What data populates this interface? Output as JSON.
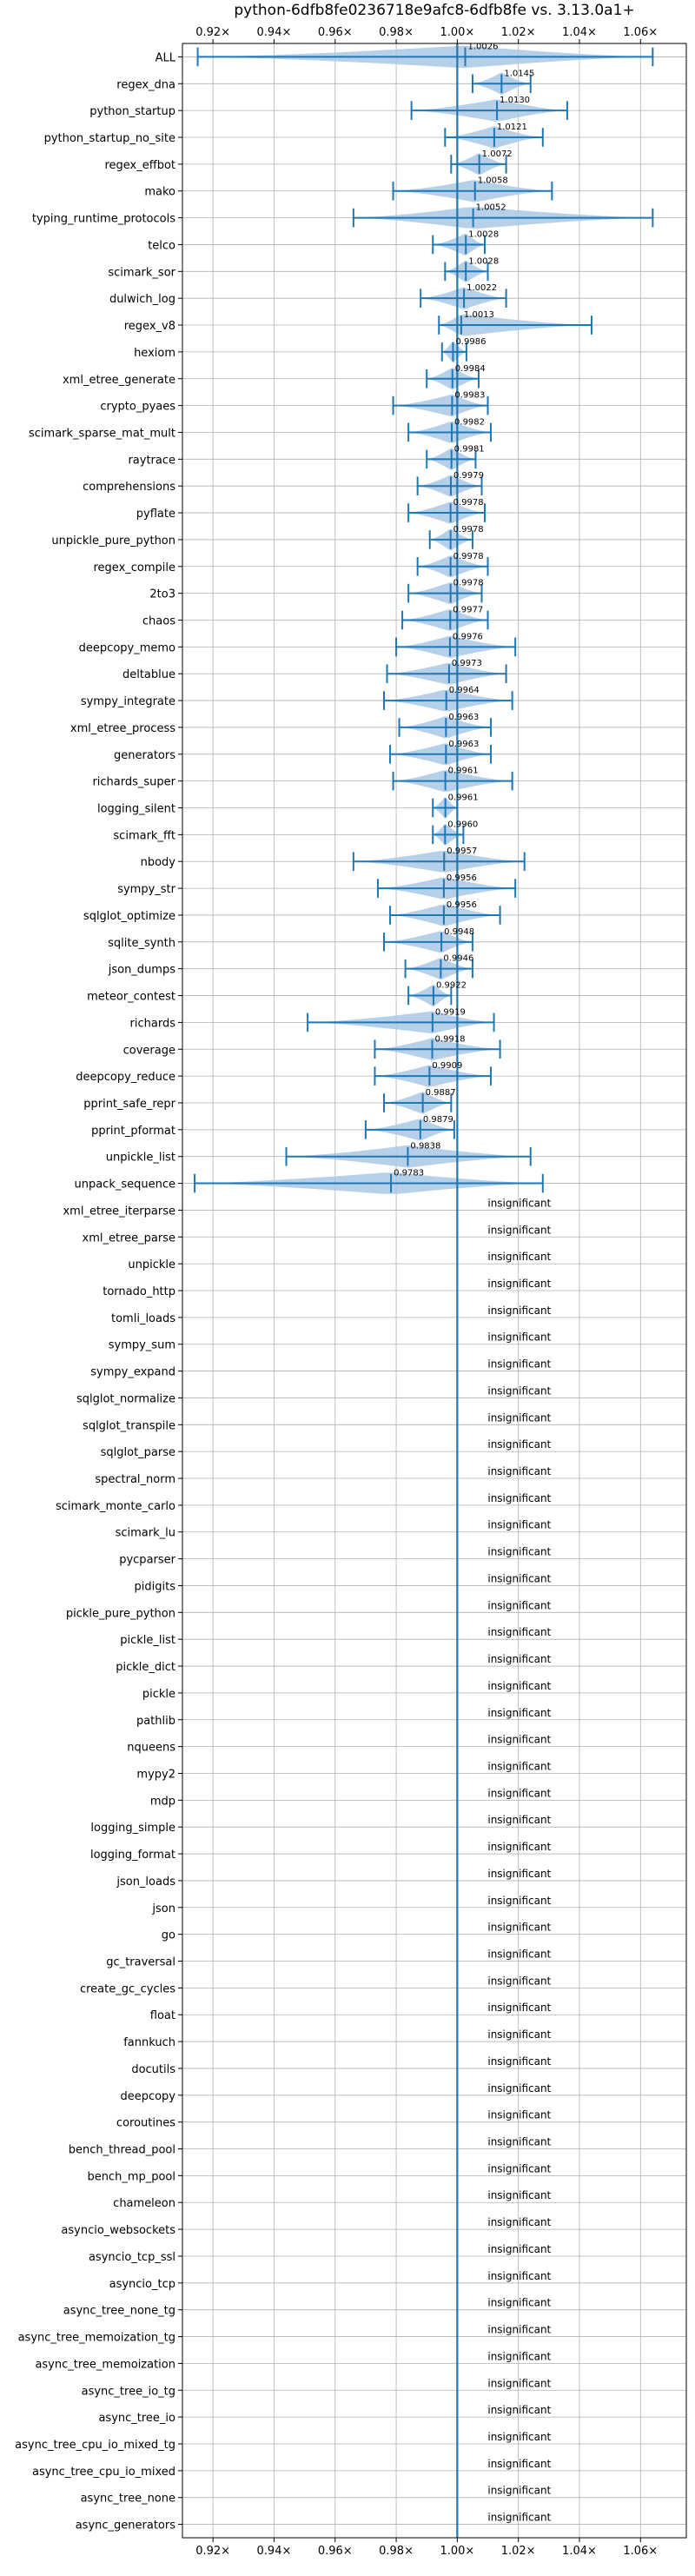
{
  "chart_data": {
    "type": "violin",
    "title": "python-6dfb8fe0236718e9afc8-6dfb8fe vs. 3.13.0a1+",
    "xlim": [
      0.91,
      1.075
    ],
    "x_ticks": [
      0.92,
      0.94,
      0.96,
      0.98,
      1.0,
      1.02,
      1.04,
      1.06
    ],
    "x_tick_labels": [
      "0.92×",
      "0.94×",
      "0.96×",
      "0.98×",
      "1.00×",
      "1.02×",
      "1.04×",
      "1.06×"
    ],
    "reference_line": 1.0,
    "grid": true,
    "insignificant_label": "insignificant",
    "benchmarks": [
      {
        "name": "ALL",
        "median": 1.0026,
        "min": 0.915,
        "max": 1.064,
        "label": "1.0026"
      },
      {
        "name": "regex_dna",
        "median": 1.0145,
        "min": 1.005,
        "max": 1.024,
        "label": "1.0145"
      },
      {
        "name": "python_startup",
        "median": 1.013,
        "min": 0.985,
        "max": 1.036,
        "label": "1.0130"
      },
      {
        "name": "python_startup_no_site",
        "median": 1.0121,
        "min": 0.996,
        "max": 1.028,
        "label": "1.0121"
      },
      {
        "name": "regex_effbot",
        "median": 1.0072,
        "min": 0.998,
        "max": 1.016,
        "label": "1.0072"
      },
      {
        "name": "mako",
        "median": 1.0058,
        "min": 0.979,
        "max": 1.031,
        "label": "1.0058"
      },
      {
        "name": "typing_runtime_protocols",
        "median": 1.0052,
        "min": 0.966,
        "max": 1.064,
        "label": "1.0052"
      },
      {
        "name": "telco",
        "median": 1.0028,
        "min": 0.992,
        "max": 1.009,
        "label": "1.0028"
      },
      {
        "name": "scimark_sor",
        "median": 1.0028,
        "min": 0.996,
        "max": 1.01,
        "label": "1.0028"
      },
      {
        "name": "dulwich_log",
        "median": 1.0022,
        "min": 0.988,
        "max": 1.016,
        "label": "1.0022"
      },
      {
        "name": "regex_v8",
        "median": 1.0013,
        "min": 0.994,
        "max": 1.044,
        "label": "1.0013"
      },
      {
        "name": "hexiom",
        "median": 0.9986,
        "min": 0.995,
        "max": 1.003,
        "label": "0.9986"
      },
      {
        "name": "xml_etree_generate",
        "median": 0.9984,
        "min": 0.99,
        "max": 1.007,
        "label": "0.9984"
      },
      {
        "name": "crypto_pyaes",
        "median": 0.9983,
        "min": 0.979,
        "max": 1.01,
        "label": "0.9983"
      },
      {
        "name": "scimark_sparse_mat_mult",
        "median": 0.9982,
        "min": 0.984,
        "max": 1.011,
        "label": "0.9982"
      },
      {
        "name": "raytrace",
        "median": 0.9981,
        "min": 0.99,
        "max": 1.006,
        "label": "0.9981"
      },
      {
        "name": "comprehensions",
        "median": 0.9979,
        "min": 0.987,
        "max": 1.008,
        "label": "0.9979"
      },
      {
        "name": "pyflate",
        "median": 0.9978,
        "min": 0.984,
        "max": 1.009,
        "label": "0.9978"
      },
      {
        "name": "unpickle_pure_python",
        "median": 0.9978,
        "min": 0.991,
        "max": 1.005,
        "label": "0.9978"
      },
      {
        "name": "regex_compile",
        "median": 0.9978,
        "min": 0.987,
        "max": 1.01,
        "label": "0.9978"
      },
      {
        "name": "2to3",
        "median": 0.9978,
        "min": 0.984,
        "max": 1.008,
        "label": "0.9978"
      },
      {
        "name": "chaos",
        "median": 0.9977,
        "min": 0.982,
        "max": 1.01,
        "label": "0.9977"
      },
      {
        "name": "deepcopy_memo",
        "median": 0.9976,
        "min": 0.98,
        "max": 1.019,
        "label": "0.9976"
      },
      {
        "name": "deltablue",
        "median": 0.9973,
        "min": 0.977,
        "max": 1.016,
        "label": "0.9973"
      },
      {
        "name": "sympy_integrate",
        "median": 0.9964,
        "min": 0.976,
        "max": 1.018,
        "label": "0.9964"
      },
      {
        "name": "xml_etree_process",
        "median": 0.9963,
        "min": 0.981,
        "max": 1.011,
        "label": "0.9963"
      },
      {
        "name": "generators",
        "median": 0.9963,
        "min": 0.978,
        "max": 1.011,
        "label": "0.9963"
      },
      {
        "name": "richards_super",
        "median": 0.9961,
        "min": 0.979,
        "max": 1.018,
        "label": "0.9961"
      },
      {
        "name": "logging_silent",
        "median": 0.9961,
        "min": 0.992,
        "max": 1.0,
        "label": "0.9961"
      },
      {
        "name": "scimark_fft",
        "median": 0.996,
        "min": 0.992,
        "max": 1.002,
        "label": "0.9960"
      },
      {
        "name": "nbody",
        "median": 0.9957,
        "min": 0.966,
        "max": 1.022,
        "label": "0.9957"
      },
      {
        "name": "sympy_str",
        "median": 0.9956,
        "min": 0.974,
        "max": 1.019,
        "label": "0.9956"
      },
      {
        "name": "sqlglot_optimize",
        "median": 0.9956,
        "min": 0.978,
        "max": 1.014,
        "label": "0.9956"
      },
      {
        "name": "sqlite_synth",
        "median": 0.9948,
        "min": 0.976,
        "max": 1.005,
        "label": "0.9948"
      },
      {
        "name": "json_dumps",
        "median": 0.9946,
        "min": 0.983,
        "max": 1.005,
        "label": "0.9946"
      },
      {
        "name": "meteor_contest",
        "median": 0.9922,
        "min": 0.984,
        "max": 0.998,
        "label": "0.9922"
      },
      {
        "name": "richards",
        "median": 0.9919,
        "min": 0.951,
        "max": 1.012,
        "label": "0.9919"
      },
      {
        "name": "coverage",
        "median": 0.9918,
        "min": 0.973,
        "max": 1.014,
        "label": "0.9918"
      },
      {
        "name": "deepcopy_reduce",
        "median": 0.9909,
        "min": 0.973,
        "max": 1.011,
        "label": "0.9909"
      },
      {
        "name": "pprint_safe_repr",
        "median": 0.9887,
        "min": 0.976,
        "max": 0.998,
        "label": "0.9887"
      },
      {
        "name": "pprint_pformat",
        "median": 0.9879,
        "min": 0.97,
        "max": 0.999,
        "label": "0.9879"
      },
      {
        "name": "unpickle_list",
        "median": 0.9838,
        "min": 0.944,
        "max": 1.024,
        "label": "0.9838"
      },
      {
        "name": "unpack_sequence",
        "median": 0.9783,
        "min": 0.914,
        "max": 1.028,
        "label": "0.9783"
      },
      {
        "name": "xml_etree_iterparse",
        "insignificant": true
      },
      {
        "name": "xml_etree_parse",
        "insignificant": true
      },
      {
        "name": "unpickle",
        "insignificant": true
      },
      {
        "name": "tornado_http",
        "insignificant": true
      },
      {
        "name": "tomli_loads",
        "insignificant": true
      },
      {
        "name": "sympy_sum",
        "insignificant": true
      },
      {
        "name": "sympy_expand",
        "insignificant": true
      },
      {
        "name": "sqlglot_normalize",
        "insignificant": true
      },
      {
        "name": "sqlglot_transpile",
        "insignificant": true
      },
      {
        "name": "sqlglot_parse",
        "insignificant": true
      },
      {
        "name": "spectral_norm",
        "insignificant": true
      },
      {
        "name": "scimark_monte_carlo",
        "insignificant": true
      },
      {
        "name": "scimark_lu",
        "insignificant": true
      },
      {
        "name": "pycparser",
        "insignificant": true
      },
      {
        "name": "pidigits",
        "insignificant": true
      },
      {
        "name": "pickle_pure_python",
        "insignificant": true
      },
      {
        "name": "pickle_list",
        "insignificant": true
      },
      {
        "name": "pickle_dict",
        "insignificant": true
      },
      {
        "name": "pickle",
        "insignificant": true
      },
      {
        "name": "pathlib",
        "insignificant": true
      },
      {
        "name": "nqueens",
        "insignificant": true
      },
      {
        "name": "mypy2",
        "insignificant": true
      },
      {
        "name": "mdp",
        "insignificant": true
      },
      {
        "name": "logging_simple",
        "insignificant": true
      },
      {
        "name": "logging_format",
        "insignificant": true
      },
      {
        "name": "json_loads",
        "insignificant": true
      },
      {
        "name": "json",
        "insignificant": true
      },
      {
        "name": "go",
        "insignificant": true
      },
      {
        "name": "gc_traversal",
        "insignificant": true
      },
      {
        "name": "create_gc_cycles",
        "insignificant": true
      },
      {
        "name": "float",
        "insignificant": true
      },
      {
        "name": "fannkuch",
        "insignificant": true
      },
      {
        "name": "docutils",
        "insignificant": true
      },
      {
        "name": "deepcopy",
        "insignificant": true
      },
      {
        "name": "coroutines",
        "insignificant": true
      },
      {
        "name": "bench_thread_pool",
        "insignificant": true
      },
      {
        "name": "bench_mp_pool",
        "insignificant": true
      },
      {
        "name": "chameleon",
        "insignificant": true
      },
      {
        "name": "asyncio_websockets",
        "insignificant": true
      },
      {
        "name": "asyncio_tcp_ssl",
        "insignificant": true
      },
      {
        "name": "asyncio_tcp",
        "insignificant": true
      },
      {
        "name": "async_tree_none_tg",
        "insignificant": true
      },
      {
        "name": "async_tree_memoization_tg",
        "insignificant": true
      },
      {
        "name": "async_tree_memoization",
        "insignificant": true
      },
      {
        "name": "async_tree_io_tg",
        "insignificant": true
      },
      {
        "name": "async_tree_io",
        "insignificant": true
      },
      {
        "name": "async_tree_cpu_io_mixed_tg",
        "insignificant": true
      },
      {
        "name": "async_tree_cpu_io_mixed",
        "insignificant": true
      },
      {
        "name": "async_tree_none",
        "insignificant": true
      },
      {
        "name": "async_generators",
        "insignificant": true
      }
    ],
    "colors": {
      "violin_fill": "#a9c8e6",
      "line": "#1f77b4",
      "grid": "#b0b0b0",
      "axis": "#000000",
      "text": "#000000"
    }
  }
}
